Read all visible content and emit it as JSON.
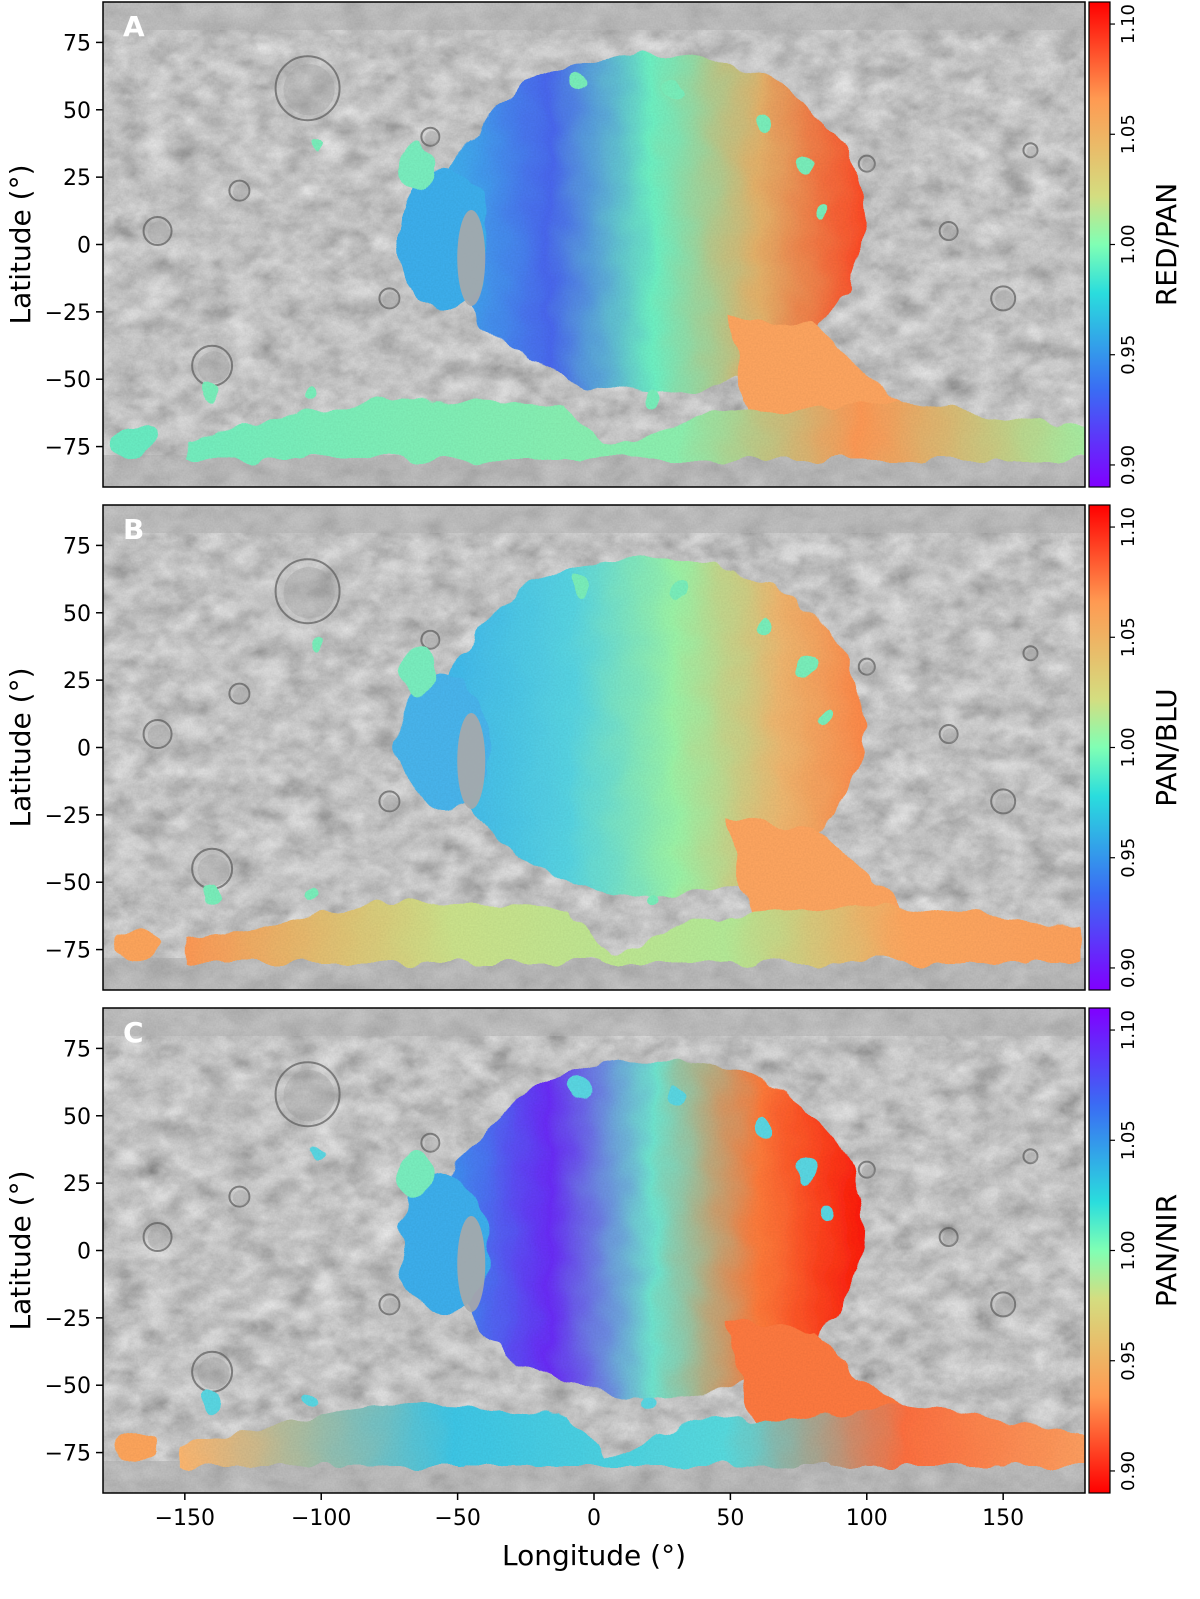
{
  "figure": {
    "x_axis_label": "Longitude (°)",
    "y_axis_label": "Latitude (°)",
    "x_range": [
      -180,
      180
    ],
    "y_range": [
      -90,
      90
    ],
    "x_ticks": [
      -150,
      -100,
      -50,
      0,
      50,
      100,
      150
    ],
    "x_tick_labels": [
      "−150",
      "−100",
      "−50",
      "0",
      "50",
      "100",
      "150"
    ],
    "y_ticks": [
      75,
      50,
      25,
      0,
      -25,
      -50,
      -75
    ],
    "y_tick_labels": [
      "75",
      "50",
      "25",
      "0",
      "−25",
      "−50",
      "−75"
    ],
    "colormap": "rainbow",
    "basemap": "grayscale cratered surface mosaic"
  },
  "panels": [
    {
      "letter": "A",
      "colorbar_label": "RED/PAN",
      "colorbar_ticks": [
        "0.90",
        "0.95",
        "1.00",
        "1.05",
        "1.10"
      ],
      "colorbar_range": [
        0.89,
        1.11
      ],
      "colormap_reversed": false
    },
    {
      "letter": "B",
      "colorbar_label": "PAN/BLU",
      "colorbar_ticks": [
        "0.90",
        "0.95",
        "1.00",
        "1.05",
        "1.10"
      ],
      "colorbar_range": [
        0.89,
        1.11
      ],
      "colormap_reversed": false
    },
    {
      "letter": "C",
      "colorbar_label": "PAN/NIR",
      "colorbar_ticks": [
        "0.90",
        "0.95",
        "1.00",
        "1.05",
        "1.10"
      ],
      "colorbar_range": [
        0.89,
        1.11
      ],
      "colormap_reversed": true
    }
  ]
}
